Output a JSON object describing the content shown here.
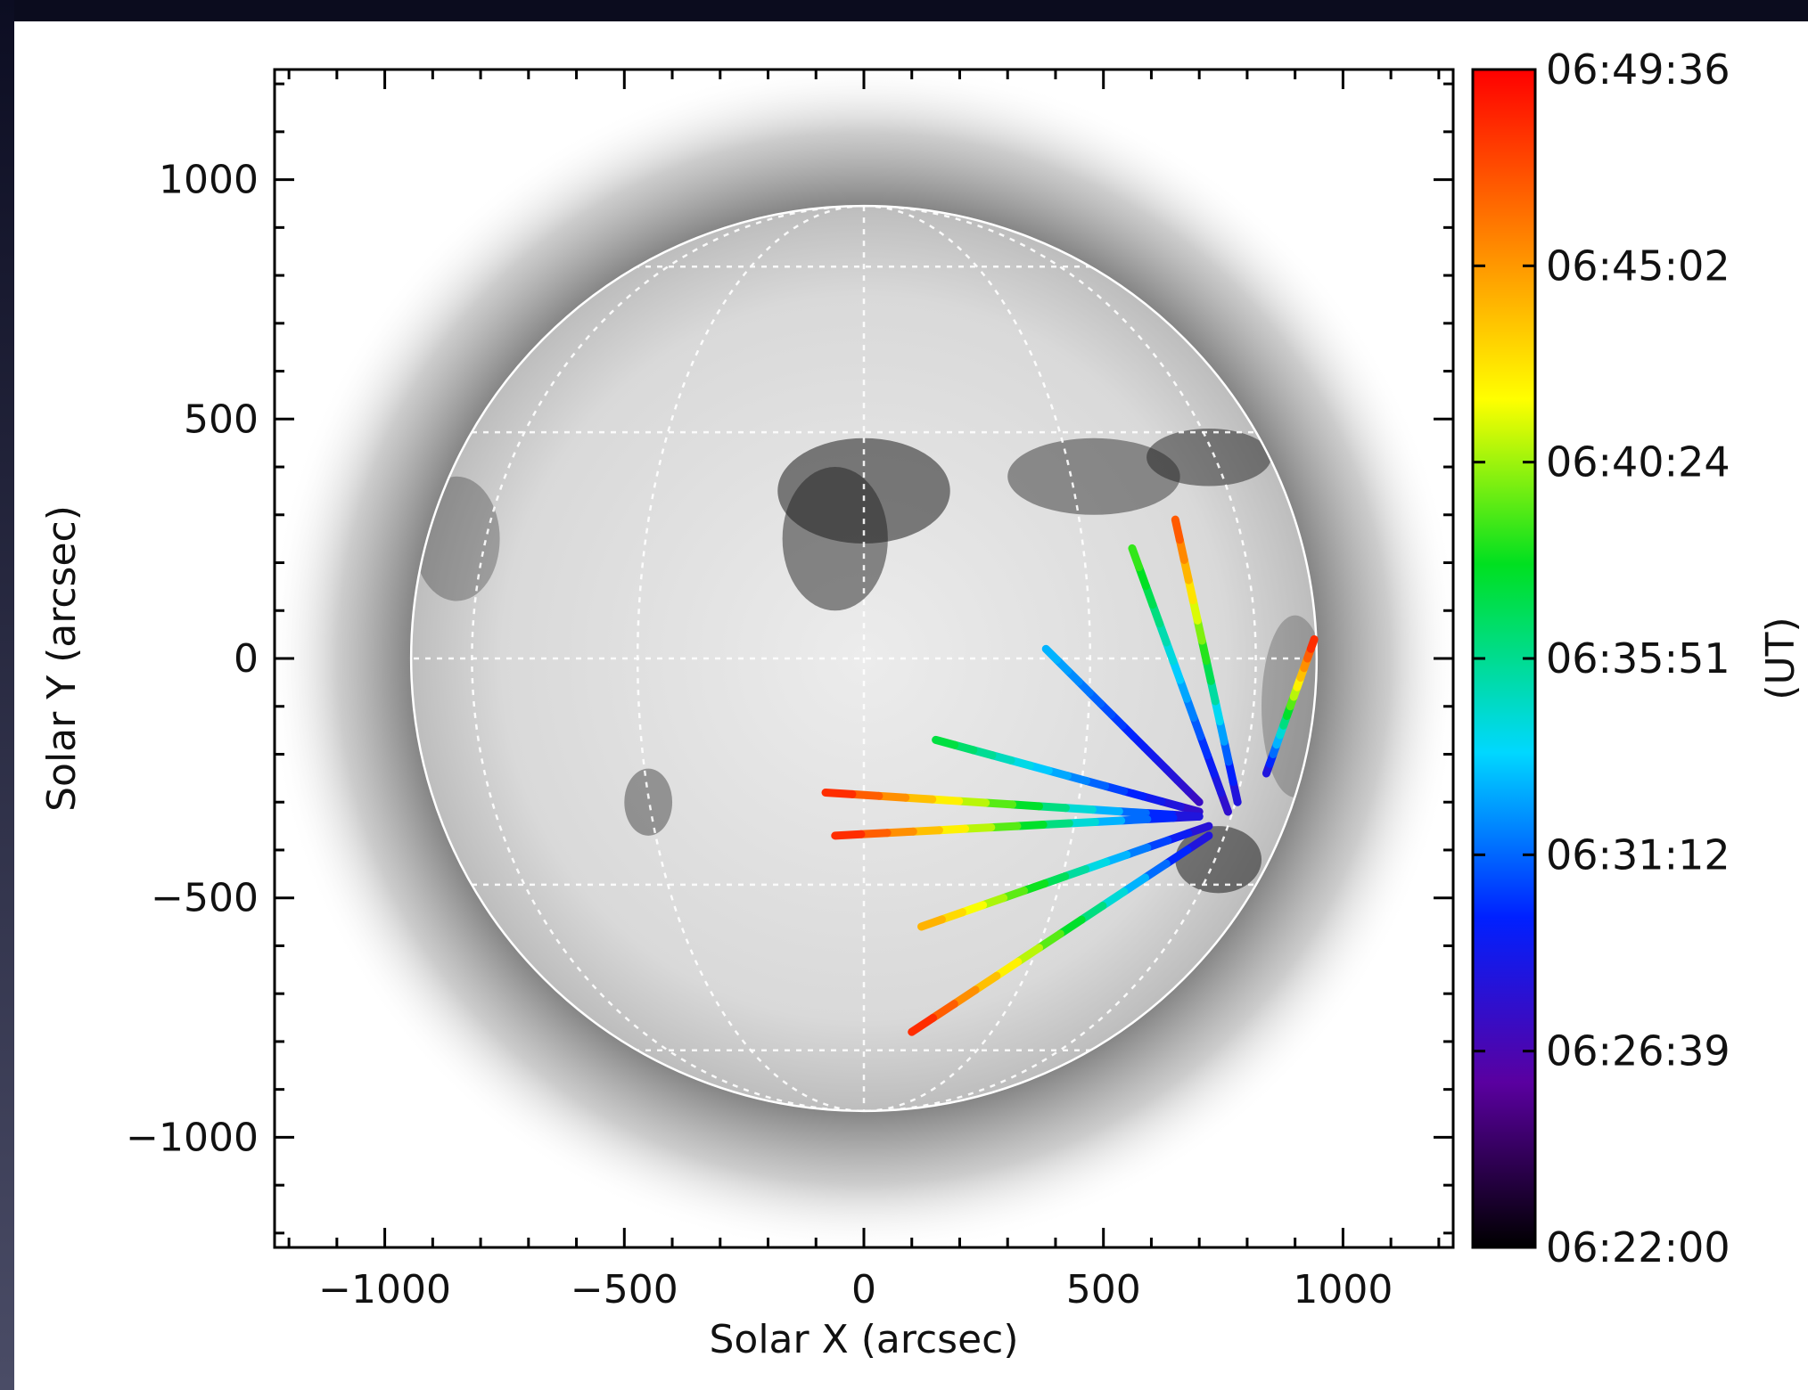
{
  "chart_data": {
    "type": "heatmap",
    "title": "",
    "xlabel": "Solar X (arcsec)",
    "ylabel": "Solar Y (arcsec)",
    "xlim": [
      -1230,
      1230
    ],
    "ylim": [
      -1230,
      1230
    ],
    "x_ticks": [
      -1000,
      -500,
      0,
      500,
      1000
    ],
    "y_ticks": [
      -1000,
      -500,
      0,
      500,
      1000
    ],
    "x_tick_labels": [
      "−1000",
      "−500",
      "0",
      "500",
      "1000"
    ],
    "y_tick_labels": [
      "−1000",
      "−500",
      "0",
      "500",
      "1000"
    ],
    "solar_radius_arcsec": 945,
    "grid": "heliographic, dotted white",
    "background": "inverted grayscale EUV full-disk image",
    "colorbar": {
      "label": "(UT)",
      "position": "right",
      "colormap": "rainbow (black-purple-blue-cyan-green-yellow-red)",
      "tick_labels": [
        "06:22:00",
        "06:26:39",
        "06:31:12",
        "06:35:51",
        "06:40:24",
        "06:45:02",
        "06:49:36"
      ],
      "colors": [
        "#000000",
        "#5a00a0",
        "#0020ff",
        "#00d8ff",
        "#00e020",
        "#ffff00",
        "#ff8000",
        "#ff0000"
      ]
    },
    "wavefront_source": [
      720,
      -330
    ],
    "wavefront_traces": [
      {
        "from": [
          700,
          -300
        ],
        "to": [
          380,
          20
        ],
        "time_frac": 0.4
      },
      {
        "from": [
          700,
          -320
        ],
        "to": [
          150,
          -170
        ],
        "time_frac": 0.55
      },
      {
        "from": [
          700,
          -330
        ],
        "to": [
          -80,
          -280
        ],
        "time_frac": 0.95
      },
      {
        "from": [
          700,
          -330
        ],
        "to": [
          -60,
          -370
        ],
        "time_frac": 0.95
      },
      {
        "from": [
          720,
          -350
        ],
        "to": [
          120,
          -560
        ],
        "time_frac": 0.8
      },
      {
        "from": [
          720,
          -370
        ],
        "to": [
          100,
          -780
        ],
        "time_frac": 0.95
      },
      {
        "from": [
          760,
          -320
        ],
        "to": [
          560,
          230
        ],
        "time_frac": 0.6
      },
      {
        "from": [
          780,
          -300
        ],
        "to": [
          650,
          290
        ],
        "time_frac": 0.9
      },
      {
        "from": [
          840,
          -240
        ],
        "to": [
          940,
          40
        ],
        "time_frac": 0.95
      }
    ]
  }
}
